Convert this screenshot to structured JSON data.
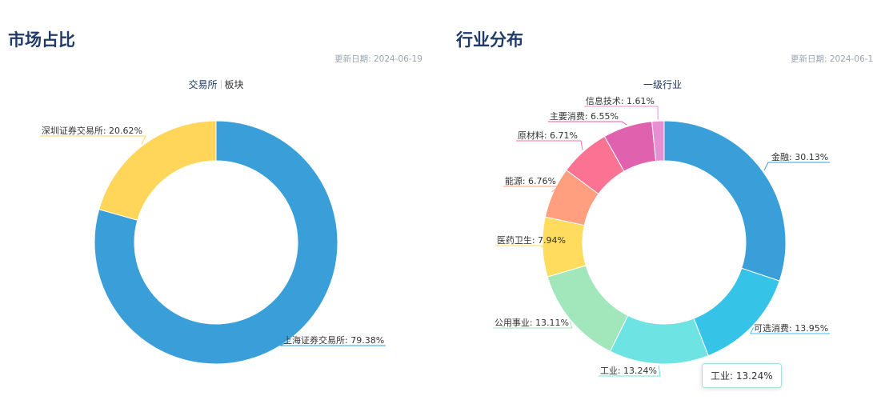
{
  "left_panel": {
    "title": "市场占比",
    "update_date": "更新日期: 2024-06-19",
    "tabs": [
      {
        "label": "交易所",
        "active": true
      },
      {
        "label": "板块",
        "active": false
      }
    ]
  },
  "right_panel": {
    "title": "行业分布",
    "update_date": "更新日期: 2024-06-1",
    "caption": "一级行业",
    "tooltip": "工业: 13.24%"
  },
  "chart_data": [
    {
      "type": "pie",
      "variant": "donut",
      "slices": [
        {
          "name": "上海证券交易所",
          "value": 79.38,
          "label": "上海证券交易所: 79.38%",
          "color": "#3a9fd8"
        },
        {
          "name": "深圳证券交易所",
          "value": 20.62,
          "label": "深圳证券交易所: 20.62%",
          "color": "#ffd65a"
        }
      ]
    },
    {
      "type": "pie",
      "variant": "donut",
      "highlighted": "工业",
      "slices": [
        {
          "name": "金融",
          "value": 30.13,
          "label": "金融: 30.13%",
          "color": "#3a9fd8"
        },
        {
          "name": "可选消费",
          "value": 13.95,
          "label": "可选消费: 13.95%",
          "color": "#35c4e8"
        },
        {
          "name": "工业",
          "value": 13.24,
          "label": "工业: 13.24%",
          "color": "#6ee3e3"
        },
        {
          "name": "公用事业",
          "value": 13.11,
          "label": "公用事业: 13.11%",
          "color": "#a2e6bb"
        },
        {
          "name": "医药卫生",
          "value": 7.94,
          "label": "医药卫生: 7.94%",
          "color": "#ffdc5e"
        },
        {
          "name": "能源",
          "value": 6.76,
          "label": "能源: 6.76%",
          "color": "#ff9f7f"
        },
        {
          "name": "原材料",
          "value": 6.71,
          "label": "原材料: 6.71%",
          "color": "#fb7293"
        },
        {
          "name": "主要消费",
          "value": 6.55,
          "label": "主要消费: 6.55%",
          "color": "#e062ae"
        },
        {
          "name": "信息技术",
          "value": 1.61,
          "label": "信息技术: 1.61%",
          "color": "#e690d1"
        }
      ]
    }
  ]
}
